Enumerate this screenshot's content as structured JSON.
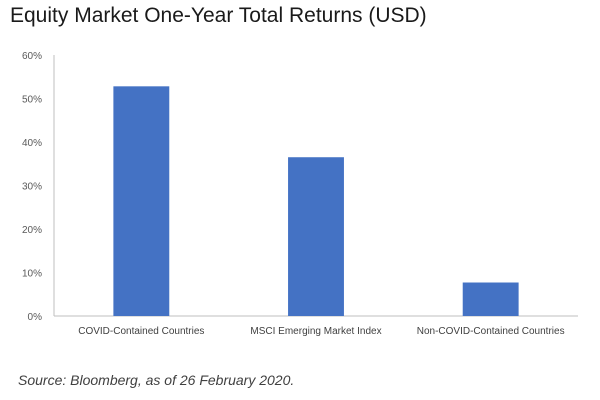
{
  "chart_data": {
    "type": "bar",
    "title": "Equity Market One-Year Total Returns (USD)",
    "categories": [
      "COVID-Contained Countries",
      "MSCI Emerging Market Index",
      "Non-COVID-Contained Countries"
    ],
    "values": [
      52.8,
      36.5,
      7.7
    ],
    "ylim": [
      0,
      60
    ],
    "yticks": [
      "0%",
      "10%",
      "20%",
      "30%",
      "40%",
      "50%",
      "60%"
    ],
    "bar_color": "#4472C4",
    "grid": false
  },
  "source_note": "Source: Bloomberg, as of 26 February 2020."
}
